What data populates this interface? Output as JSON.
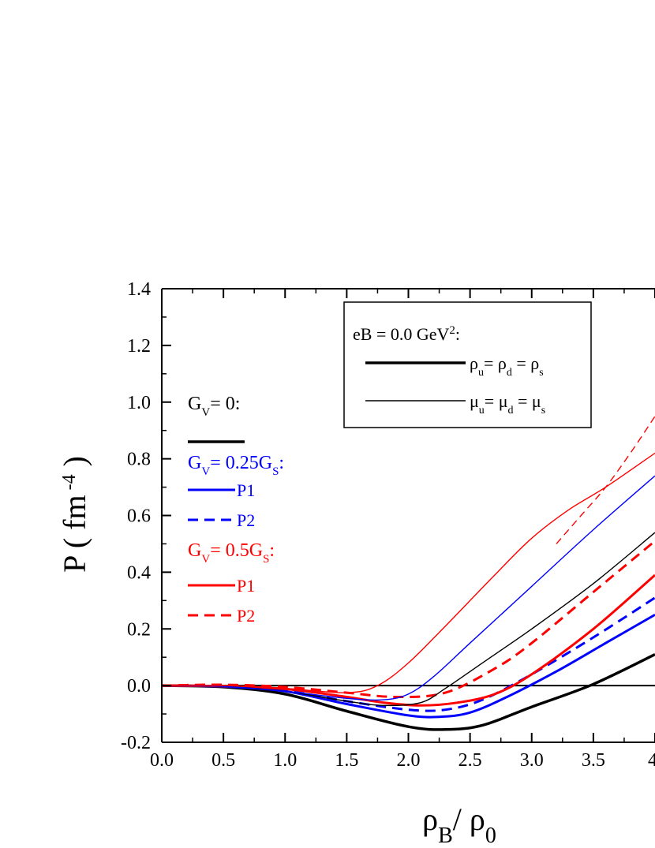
{
  "chart_data": {
    "type": "line",
    "xlabel": "ρB/ ρ0",
    "ylabel": "P ( fm -4 )",
    "xlim": [
      0.0,
      4.0
    ],
    "ylim": [
      -0.2,
      1.4
    ],
    "x_ticks": [
      "0.0",
      "0.5",
      "1.0",
      "1.5",
      "2.0",
      "2.5",
      "3.0",
      "3.5",
      "4."
    ],
    "y_ticks": [
      "-0.2",
      "0.0",
      "0.2",
      "0.4",
      "0.6",
      "0.8",
      "1.0",
      "1.2",
      "1.4"
    ],
    "colors": {
      "black": "#000000",
      "blue": "#0000ff",
      "red": "#ff0000"
    },
    "legend_box": {
      "title": "eB = 0.0 GeV2:",
      "rows": [
        {
          "label": "ρu= ρd = ρs",
          "style": "thick"
        },
        {
          "label": "μu= μd = μs",
          "style": "thin"
        }
      ]
    },
    "left_legend": {
      "groups": [
        {
          "title": "GV= 0:",
          "color": "#000000",
          "entries": [
            {
              "label": "",
              "dash": "solid"
            }
          ]
        },
        {
          "title": "GV= 0.25GS:",
          "color": "#0000ff",
          "entries": [
            {
              "label": "P1",
              "dash": "solid"
            },
            {
              "label": "P2",
              "dash": "dashed"
            }
          ]
        },
        {
          "title": "GV= 0.5GS:",
          "color": "#ff0000",
          "entries": [
            {
              "label": "P1",
              "dash": "solid"
            },
            {
              "label": "P2",
              "dash": "dashed"
            }
          ]
        }
      ]
    },
    "series": [
      {
        "color": "#000000",
        "width": 3.5,
        "dash": "solid",
        "x": [
          0,
          0.5,
          1.0,
          1.5,
          2.0,
          2.3,
          2.6,
          3.0,
          3.5,
          4.0
        ],
        "y": [
          0,
          -0.005,
          -0.03,
          -0.09,
          -0.145,
          -0.155,
          -0.14,
          -0.075,
          0.005,
          0.11
        ]
      },
      {
        "color": "#0000ff",
        "width": 3.0,
        "dash": "solid",
        "x": [
          0,
          0.5,
          1.0,
          1.5,
          2.0,
          2.25,
          2.5,
          2.8,
          3.2,
          3.6,
          4.0
        ],
        "y": [
          0,
          -0.003,
          -0.02,
          -0.065,
          -0.105,
          -0.11,
          -0.095,
          -0.04,
          0.05,
          0.15,
          0.25
        ]
      },
      {
        "color": "#0000ff",
        "width": 3.0,
        "dash": "dashed",
        "x": [
          0,
          0.5,
          1.0,
          1.5,
          2.0,
          2.3,
          2.6,
          3.0,
          3.5,
          4.0
        ],
        "y": [
          0,
          -0.002,
          -0.018,
          -0.055,
          -0.085,
          -0.085,
          -0.05,
          0.04,
          0.17,
          0.31
        ]
      },
      {
        "color": "#ff0000",
        "width": 3.0,
        "dash": "solid",
        "x": [
          0,
          0.5,
          1.0,
          1.5,
          1.8,
          2.1,
          2.4,
          2.7,
          3.0,
          3.5,
          4.0
        ],
        "y": [
          0,
          -0.002,
          -0.012,
          -0.04,
          -0.06,
          -0.07,
          -0.06,
          -0.03,
          0.04,
          0.2,
          0.39
        ]
      },
      {
        "color": "#ff0000",
        "width": 3.0,
        "dash": "dashed",
        "x": [
          0,
          0.5,
          1.0,
          1.5,
          1.9,
          2.3,
          2.7,
          3.0,
          3.5,
          4.0
        ],
        "y": [
          0,
          0.003,
          -0.005,
          -0.025,
          -0.04,
          -0.025,
          0.06,
          0.15,
          0.33,
          0.51
        ]
      },
      {
        "color": "#000000",
        "width": 1.4,
        "dash": "solid",
        "x": [
          0,
          0.5,
          1.0,
          1.5,
          1.8,
          2.1,
          2.3,
          2.6,
          3.0,
          3.5,
          4.0
        ],
        "y": [
          0,
          -0.003,
          -0.02,
          -0.055,
          -0.07,
          -0.06,
          -0.01,
          0.08,
          0.2,
          0.36,
          0.54
        ]
      },
      {
        "color": "#0000ff",
        "width": 1.4,
        "dash": "solid",
        "x": [
          0,
          0.5,
          1.0,
          1.5,
          1.8,
          2.0,
          2.2,
          2.5,
          3.0,
          3.5,
          4.0
        ],
        "y": [
          0,
          -0.003,
          -0.02,
          -0.045,
          -0.05,
          -0.03,
          0.03,
          0.15,
          0.35,
          0.55,
          0.74
        ]
      },
      {
        "color": "#ff0000",
        "width": 1.4,
        "dash": "solid",
        "x": [
          0,
          0.5,
          1.0,
          1.5,
          1.75,
          2.0,
          2.3,
          2.7,
          3.0,
          3.3,
          3.6,
          4.0
        ],
        "y": [
          0,
          0,
          -0.01,
          -0.025,
          0.0,
          0.08,
          0.21,
          0.39,
          0.52,
          0.62,
          0.7,
          0.82
        ]
      },
      {
        "color": "#ff0000",
        "width": 1.4,
        "dash": "dashed",
        "x": [
          3.2,
          3.4,
          3.6,
          3.8,
          4.0
        ],
        "y": [
          0.5,
          0.6,
          0.7,
          0.82,
          0.95
        ]
      }
    ]
  }
}
